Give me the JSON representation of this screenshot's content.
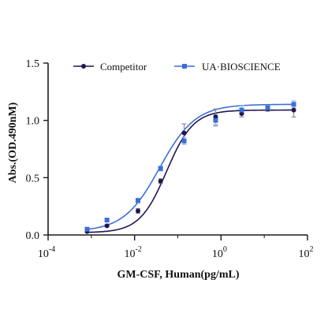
{
  "chart_data": {
    "type": "scatter",
    "xlabel": "GM-CSF, Human(pg/mL)",
    "ylabel": "Abs.(OD.490nM)",
    "x_scale": "log",
    "xlim": [
      0.0001,
      100
    ],
    "ylim": [
      0.0,
      1.5
    ],
    "x_ticks": [
      {
        "base": "10",
        "exp": "-4",
        "value": 0.0001
      },
      {
        "base": "10",
        "exp": "-2",
        "value": 0.01
      },
      {
        "base": "10",
        "exp": "0",
        "value": 1
      },
      {
        "base": "10",
        "exp": "2",
        "value": 100
      }
    ],
    "y_ticks": [
      "0.0",
      "0.5",
      "1.0",
      "1.5"
    ],
    "y_tick_values": [
      0.0,
      0.5,
      1.0,
      1.5
    ],
    "grid": false,
    "legend_position": "top",
    "series": [
      {
        "name": "Competitor",
        "color": "#1f1650",
        "marker": "circle",
        "x": [
          0.0008,
          0.0023,
          0.012,
          0.04,
          0.14,
          0.75,
          3.0,
          12,
          48
        ],
        "y": [
          0.03,
          0.08,
          0.21,
          0.47,
          0.89,
          1.03,
          1.06,
          1.1,
          1.09
        ],
        "err": [
          0.01,
          0.01,
          0.02,
          0.02,
          0.08,
          0.07,
          0.03,
          0.02,
          0.06
        ],
        "fit": {
          "bottom": 0.02,
          "top": 1.09,
          "ec50": 0.055,
          "hill": 1.4
        }
      },
      {
        "name": "UA·BIOSCIENCE",
        "color": "#3d6fd6",
        "marker": "square",
        "x": [
          0.0008,
          0.0023,
          0.012,
          0.04,
          0.14,
          0.75,
          3.0,
          12,
          48
        ],
        "y": [
          0.05,
          0.13,
          0.3,
          0.58,
          0.82,
          1.0,
          1.09,
          1.11,
          1.14
        ],
        "err": [
          0.01,
          0.01,
          0.02,
          0.02,
          0.03,
          0.05,
          0.04,
          0.02,
          0.03
        ],
        "fit": {
          "bottom": 0.03,
          "top": 1.14,
          "ec50": 0.038,
          "hill": 1.05
        }
      }
    ]
  }
}
